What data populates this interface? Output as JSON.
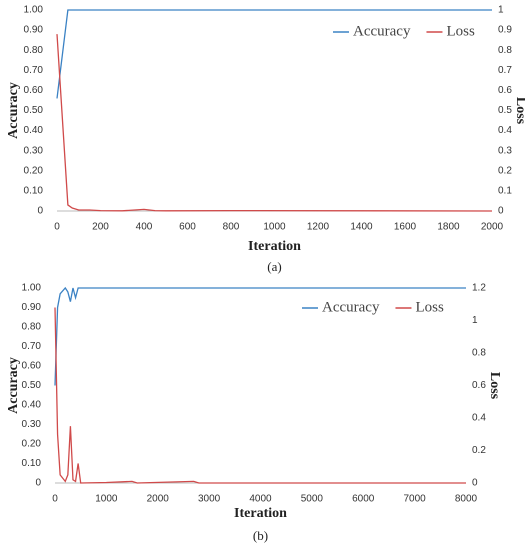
{
  "chart_data": [
    {
      "type": "line",
      "caption": "(a)",
      "xlabel": "Iteration",
      "ylabel": "Accuracy",
      "y2label": "Loss",
      "x": [
        0,
        50,
        70,
        100,
        150,
        200,
        300,
        400,
        450,
        500,
        800,
        2000
      ],
      "series": [
        {
          "name": "Accuracy",
          "color": "#3b82c4",
          "values": [
            0.56,
            1,
            1,
            1,
            1,
            1,
            1,
            1,
            1,
            1,
            1,
            1
          ]
        },
        {
          "name": "Loss",
          "color": "#d04a4a",
          "axis": "y2",
          "values": [
            0.88,
            0.03,
            0.015,
            0.005,
            0.005,
            0.002,
            0.001,
            0.008,
            0.002,
            0.001,
            0.002,
            0
          ]
        }
      ],
      "xlim": [
        0,
        2000
      ],
      "xticks": [
        0,
        200,
        400,
        600,
        800,
        1000,
        1200,
        1400,
        1600,
        1800,
        2000
      ],
      "ylim": [
        0,
        1
      ],
      "yticks": [
        0,
        {
          "value": 0.1,
          "label": "0.10"
        },
        {
          "value": 0.2,
          "label": "0.20"
        },
        {
          "value": 0.3,
          "label": "0.30"
        },
        {
          "value": 0.4,
          "label": "0.40"
        },
        {
          "value": 0.5,
          "label": "0.50"
        },
        {
          "value": 0.6,
          "label": "0.60"
        },
        {
          "value": 0.7,
          "label": "0.70"
        },
        {
          "value": 0.8,
          "label": "0.80"
        },
        {
          "value": 0.9,
          "label": "0.90"
        },
        {
          "value": 1,
          "label": "1.00"
        }
      ],
      "y2lim": [
        0,
        1
      ],
      "y2ticks": [
        0,
        0.1,
        0.2,
        0.3,
        0.4,
        0.5,
        0.6,
        0.7,
        0.8,
        0.9,
        1
      ],
      "grid": false,
      "legend": "upper right"
    },
    {
      "type": "line",
      "caption": "(b)",
      "xlabel": "Iteration",
      "ylabel": "Accuracy",
      "y2label": "Loss",
      "x": [
        0,
        50,
        100,
        200,
        250,
        300,
        350,
        400,
        450,
        500,
        1000,
        1500,
        1600,
        2700,
        2800,
        8000
      ],
      "series": [
        {
          "name": "Accuracy",
          "color": "#3b82c4",
          "values": [
            0.5,
            0.9,
            0.97,
            1,
            0.98,
            0.93,
            1,
            0.95,
            1,
            1,
            1,
            1,
            1,
            1,
            1,
            1
          ]
        },
        {
          "name": "Loss",
          "color": "#d04a4a",
          "axis": "y2",
          "values": [
            1.08,
            0.3,
            0.05,
            0.01,
            0.05,
            0.35,
            0.02,
            0.01,
            0.12,
            0,
            0.003,
            0.01,
            0,
            0.01,
            0,
            0
          ]
        }
      ],
      "xlim": [
        0,
        8000
      ],
      "xticks": [
        0,
        1000,
        2000,
        3000,
        4000,
        5000,
        6000,
        7000,
        8000
      ],
      "ylim": [
        0,
        1
      ],
      "yticks": [
        0,
        {
          "value": 0.1,
          "label": "0.10"
        },
        {
          "value": 0.2,
          "label": "0.20"
        },
        {
          "value": 0.3,
          "label": "0.30"
        },
        {
          "value": 0.4,
          "label": "0.40"
        },
        {
          "value": 0.5,
          "label": "0.50"
        },
        {
          "value": 0.6,
          "label": "0.60"
        },
        {
          "value": 0.7,
          "label": "0.70"
        },
        {
          "value": 0.8,
          "label": "0.80"
        },
        {
          "value": 0.9,
          "label": "0.90"
        },
        {
          "value": 1,
          "label": "1.00"
        }
      ],
      "y2lim": [
        0,
        1.2
      ],
      "y2ticks": [
        0,
        0.2,
        0.4,
        0.6,
        0.8,
        1,
        1.2
      ],
      "grid": false,
      "legend": "upper right"
    }
  ]
}
